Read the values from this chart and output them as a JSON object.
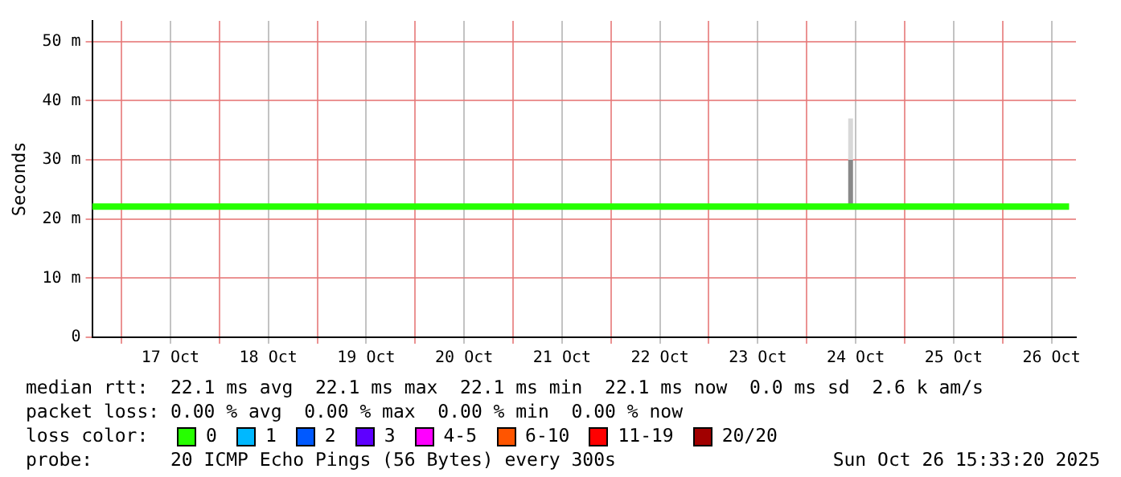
{
  "chart_data": {
    "type": "line",
    "ylabel": "Seconds",
    "legend_title": "loss color:",
    "legend": "bottom",
    "grid": true,
    "marker": "none",
    "line_style": "solid",
    "x": [
      "2025-10-16T16:48",
      "2025-10-26T16:19"
    ],
    "xlim": [
      "2025-10-16T16:48",
      "2025-10-26T18:00"
    ],
    "xticks": [
      {
        "value": "2025-10-17T00:00",
        "label": null
      },
      {
        "value": "2025-10-17T12:00",
        "label": "17 Oct"
      },
      {
        "value": "2025-10-18T00:00",
        "label": null
      },
      {
        "value": "2025-10-18T12:00",
        "label": "18 Oct"
      },
      {
        "value": "2025-10-19T00:00",
        "label": null
      },
      {
        "value": "2025-10-19T12:00",
        "label": "19 Oct"
      },
      {
        "value": "2025-10-20T00:00",
        "label": null
      },
      {
        "value": "2025-10-20T12:00",
        "label": "20 Oct"
      },
      {
        "value": "2025-10-21T00:00",
        "label": null
      },
      {
        "value": "2025-10-21T12:00",
        "label": "21 Oct"
      },
      {
        "value": "2025-10-22T00:00",
        "label": null
      },
      {
        "value": "2025-10-22T12:00",
        "label": "22 Oct"
      },
      {
        "value": "2025-10-23T00:00",
        "label": null
      },
      {
        "value": "2025-10-23T12:00",
        "label": "23 Oct"
      },
      {
        "value": "2025-10-24T00:00",
        "label": null
      },
      {
        "value": "2025-10-24T12:00",
        "label": "24 Oct"
      },
      {
        "value": "2025-10-25T00:00",
        "label": null
      },
      {
        "value": "2025-10-25T12:00",
        "label": "25 Oct"
      },
      {
        "value": "2025-10-26T00:00",
        "label": null
      },
      {
        "value": "2025-10-26T12:00",
        "label": "26 Oct"
      }
    ],
    "ylim": [
      0,
      53.5
    ],
    "yticks": [
      0,
      {
        "value": 10,
        "label": "10 m"
      },
      {
        "value": 20,
        "label": "20 m"
      },
      {
        "value": 30,
        "label": "30 m"
      },
      {
        "value": 40,
        "label": "40 m"
      },
      {
        "value": 50,
        "label": "50 m"
      }
    ],
    "series": [
      {
        "name": "0",
        "color": "#26ff00",
        "values": [
          22.1,
          22.1
        ]
      },
      {
        "name": "1",
        "color": "#00b8ff",
        "values": [
          null,
          null
        ]
      },
      {
        "name": "2",
        "color": "#0059ff",
        "values": [
          null,
          null
        ]
      },
      {
        "name": "3",
        "color": "#5e00ff",
        "values": [
          null,
          null
        ]
      },
      {
        "name": "4-5",
        "color": "#ff00ff",
        "values": [
          null,
          null
        ]
      },
      {
        "name": "6-10",
        "color": "#ff5500",
        "values": [
          null,
          null
        ]
      },
      {
        "name": "11-19",
        "color": "#ff0000",
        "values": [
          null,
          null
        ]
      },
      {
        "name": "20/20",
        "color": "#a10000",
        "values": [
          null,
          null
        ]
      },
      {
        "color": "#888888",
        "x": [
          "2025-10-24T10:45",
          "2025-10-24T10:45"
        ],
        "values": [
          22.2,
          30
        ]
      },
      {
        "color": "#d8d8d8",
        "x": [
          "2025-10-24T10:45",
          "2025-10-24T10:45"
        ],
        "values": [
          30,
          37
        ]
      }
    ],
    "annotations": [
      "median rtt:  22.1 ms avg  22.1 ms max  22.1 ms min  22.1 ms now  0.0 ms sd  2.6 k am/s",
      "packet loss: 0.00 % avg  0.00 % max  0.00 % min  0.00 % now",
      "probe:       20 ICMP Echo Pings (56 Bytes) every 300s",
      "Sun Oct 26 15:33:20 2025"
    ]
  }
}
